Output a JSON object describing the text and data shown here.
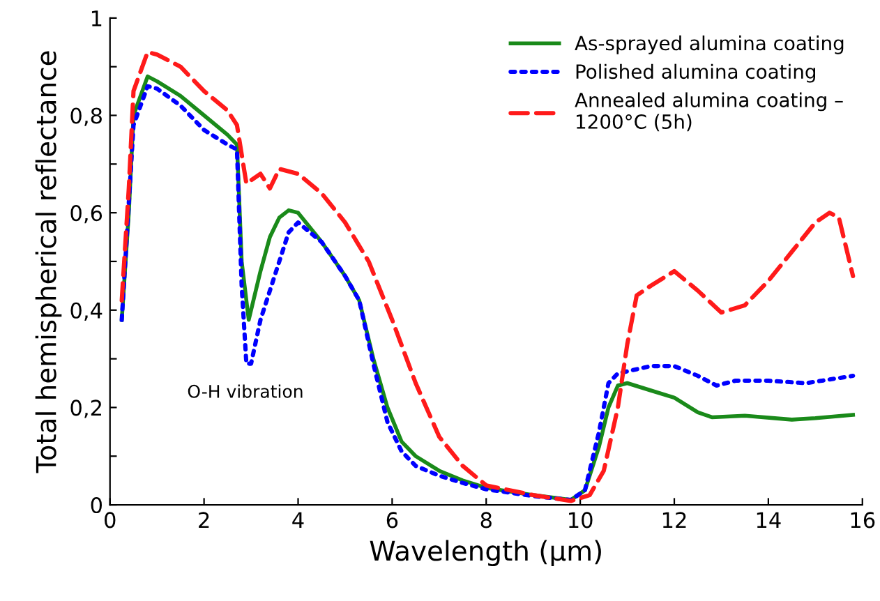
{
  "chart_data": {
    "type": "line",
    "xlabel": "Wavelength (µm)",
    "ylabel": "Total hemispherical reflectance",
    "xlim": [
      0,
      16
    ],
    "ylim": [
      0,
      1
    ],
    "xticks": [
      0,
      2,
      4,
      6,
      8,
      10,
      12,
      14,
      16
    ],
    "yticks": [
      0,
      {
        "value": 0.1,
        "label": null
      },
      {
        "value": 0.2,
        "label": "0,2"
      },
      {
        "value": 0.3,
        "label": null
      },
      {
        "value": 0.4,
        "label": "0,4"
      },
      {
        "value": 0.5,
        "label": null
      },
      {
        "value": 0.6,
        "label": "0,6"
      },
      {
        "value": 0.7,
        "label": null
      },
      {
        "value": 0.8,
        "label": "0,8"
      },
      {
        "value": 0.9,
        "label": null
      },
      1
    ],
    "grid": false,
    "legend": "top right",
    "marker": "none",
    "annotations": [
      "O-H vibration"
    ],
    "series": [
      {
        "name": "As-sprayed alumina coating",
        "color": "#1a8a1a",
        "line_style": "solid",
        "x": [
          0.25,
          0.4,
          0.5,
          0.8,
          1.0,
          1.5,
          2.0,
          2.5,
          2.7,
          2.8,
          2.95,
          3.2,
          3.4,
          3.6,
          3.8,
          4.0,
          4.5,
          5.0,
          5.3,
          5.6,
          5.9,
          6.2,
          6.5,
          7,
          7.5,
          8,
          9,
          9.8,
          10.1,
          10.4,
          10.6,
          10.8,
          11,
          11.5,
          12,
          12.5,
          12.8,
          13.5,
          14.5,
          15,
          15.8
        ],
        "values": [
          0.38,
          0.6,
          0.8,
          0.88,
          0.87,
          0.84,
          0.8,
          0.76,
          0.74,
          0.5,
          0.38,
          0.48,
          0.55,
          0.59,
          0.605,
          0.6,
          0.54,
          0.47,
          0.42,
          0.3,
          0.2,
          0.13,
          0.1,
          0.07,
          0.05,
          0.035,
          0.02,
          0.01,
          0.03,
          0.12,
          0.2,
          0.245,
          0.25,
          0.235,
          0.22,
          0.19,
          0.18,
          0.183,
          0.175,
          0.178,
          0.185
        ]
      },
      {
        "name": "Polished alumina coating",
        "color": "#0000ff",
        "line_style": "dotted",
        "x": [
          0.25,
          0.4,
          0.5,
          0.8,
          1.0,
          1.5,
          2,
          2.5,
          2.7,
          2.8,
          2.9,
          3.0,
          3.2,
          3.5,
          3.8,
          4.0,
          4.5,
          5,
          5.3,
          5.6,
          5.9,
          6.2,
          6.5,
          7,
          7.5,
          8,
          9,
          9.8,
          10.1,
          10.4,
          10.6,
          10.8,
          11.5,
          12,
          12.5,
          12.9,
          13.3,
          14,
          14.8,
          15.8
        ],
        "values": [
          0.38,
          0.62,
          0.78,
          0.86,
          0.855,
          0.82,
          0.77,
          0.74,
          0.73,
          0.45,
          0.29,
          0.29,
          0.38,
          0.47,
          0.56,
          0.58,
          0.54,
          0.47,
          0.42,
          0.29,
          0.17,
          0.11,
          0.08,
          0.06,
          0.045,
          0.032,
          0.018,
          0.01,
          0.03,
          0.15,
          0.25,
          0.27,
          0.285,
          0.285,
          0.265,
          0.245,
          0.255,
          0.255,
          0.25,
          0.265
        ]
      },
      {
        "name": "Annealed alumina coating –\n1200°C (5h)",
        "color": "#ff1a1a",
        "line_style": "dashed",
        "x": [
          0.25,
          0.4,
          0.5,
          0.8,
          1.0,
          1.5,
          2,
          2.5,
          2.7,
          2.9,
          3.2,
          3.4,
          3.6,
          4.0,
          4.5,
          5,
          5.5,
          6,
          6.5,
          7,
          7.5,
          8,
          9,
          9.8,
          10.2,
          10.5,
          10.8,
          11,
          11.2,
          11.5,
          12,
          12.5,
          13,
          13.5,
          14,
          14.5,
          15,
          15.3,
          15.5,
          15.8
        ],
        "values": [
          0.42,
          0.65,
          0.85,
          0.93,
          0.925,
          0.9,
          0.85,
          0.81,
          0.78,
          0.66,
          0.68,
          0.65,
          0.69,
          0.68,
          0.64,
          0.58,
          0.5,
          0.38,
          0.25,
          0.14,
          0.08,
          0.04,
          0.02,
          0.008,
          0.02,
          0.07,
          0.2,
          0.33,
          0.43,
          0.45,
          0.48,
          0.44,
          0.395,
          0.41,
          0.46,
          0.52,
          0.58,
          0.6,
          0.59,
          0.47
        ]
      }
    ]
  }
}
